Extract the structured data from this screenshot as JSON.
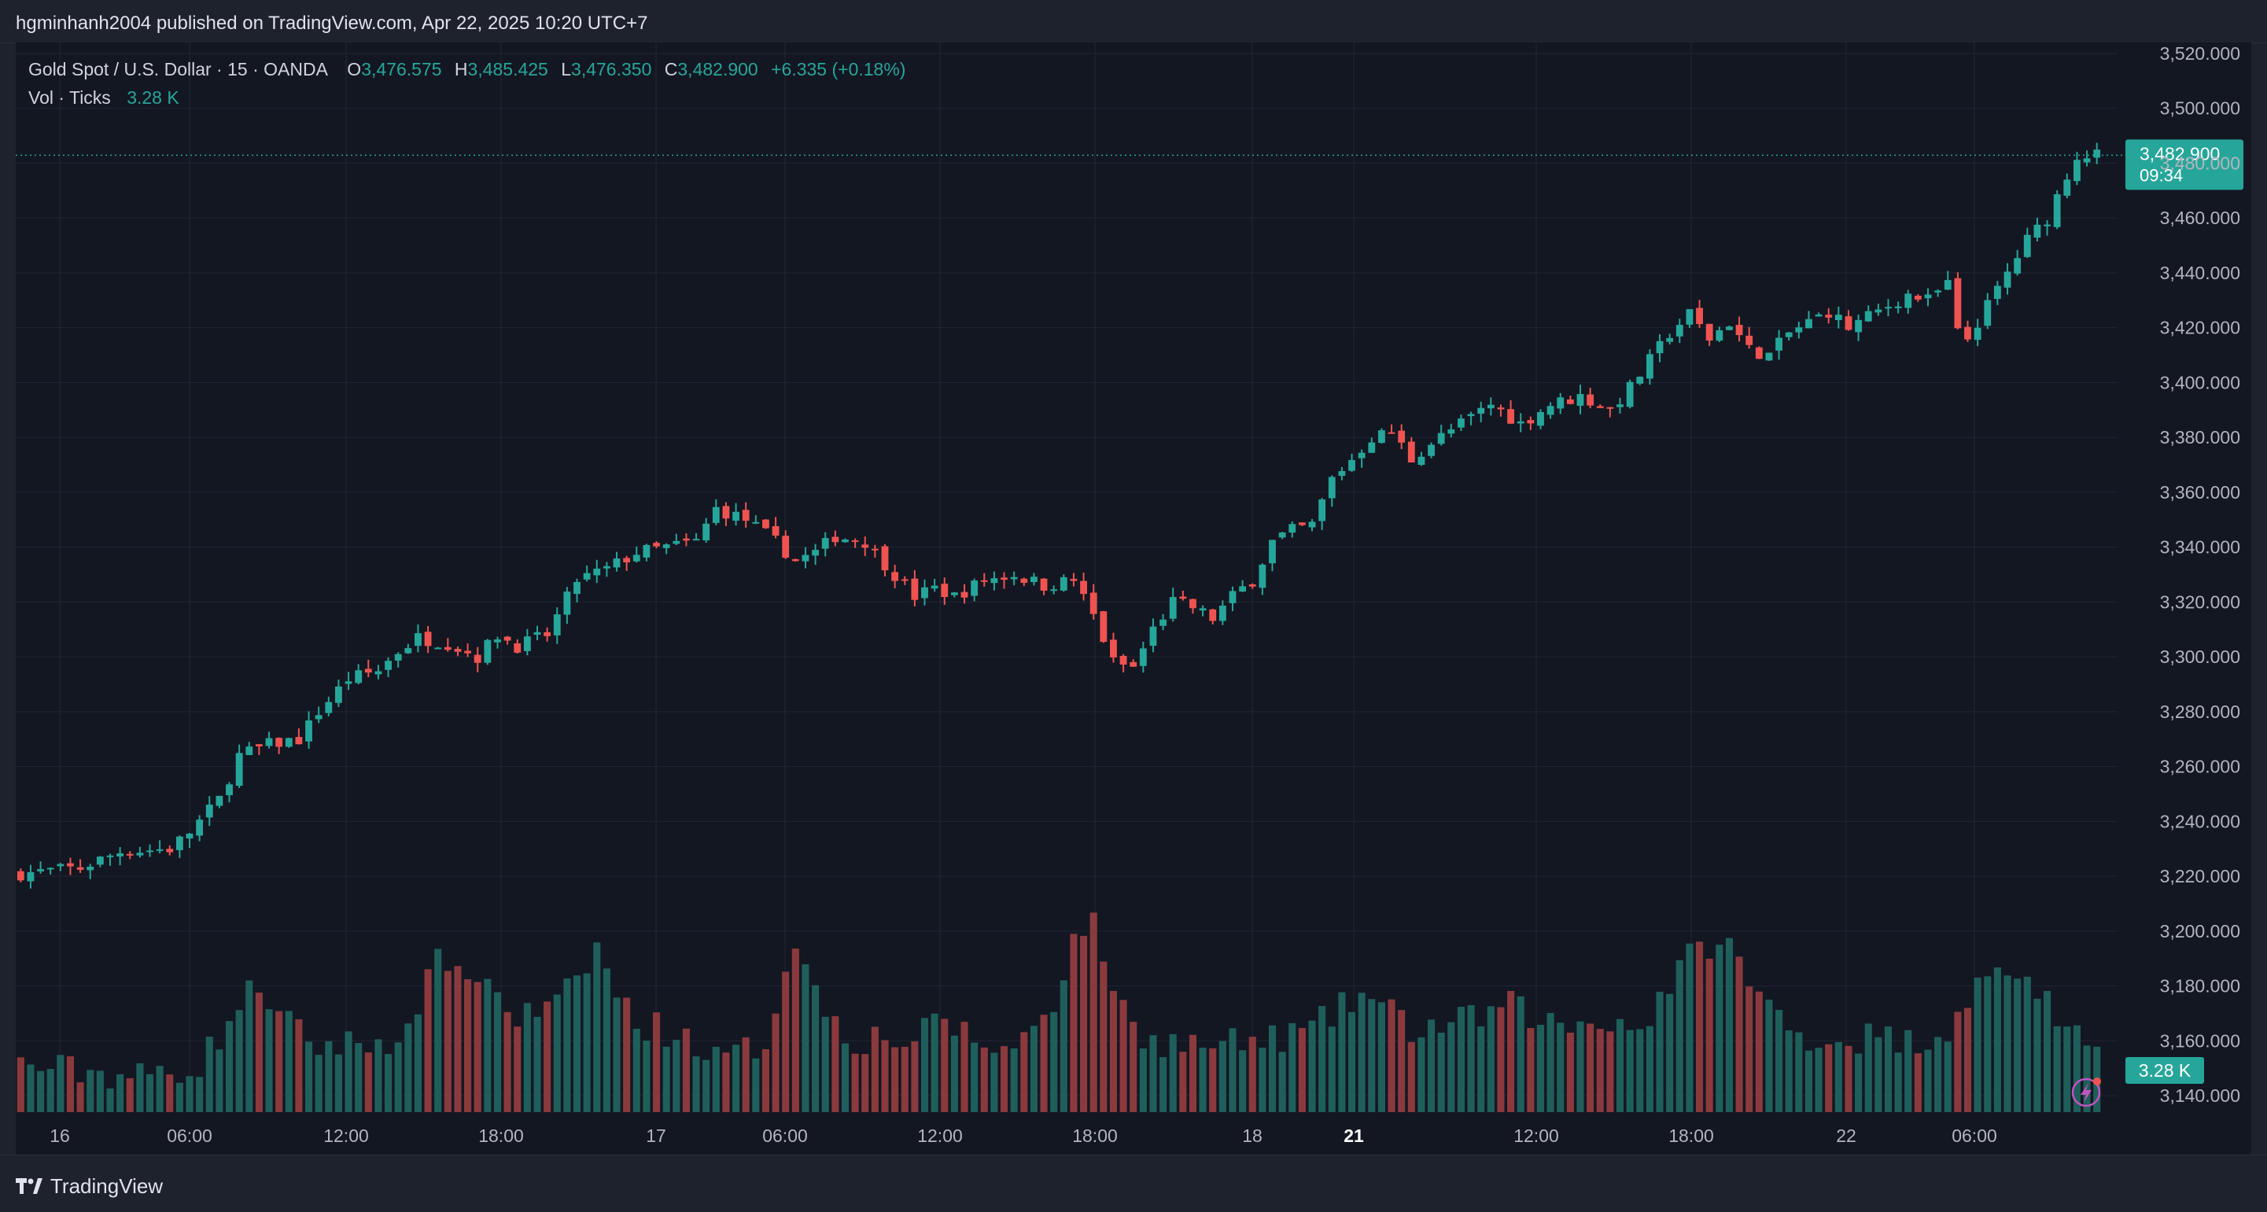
{
  "header": {
    "published": "hgminhanh2004 published on TradingView.com, Apr 22, 2025 10:20 UTC+7"
  },
  "legend": {
    "symbol": "Gold Spot / U.S. Dollar · 15 · OANDA",
    "o_label": "O",
    "o_value": "3,476.575",
    "h_label": "H",
    "h_value": "3,485.425",
    "l_label": "L",
    "l_value": "3,476.350",
    "c_label": "C",
    "c_value": "3,482.900",
    "change": "+6.335 (+0.18%)",
    "vol_label": "Vol · Ticks",
    "vol_value": "3.28 K"
  },
  "price_badge": {
    "price": "3,482.900",
    "countdown": "09:34"
  },
  "volume_badge": "3.28 K",
  "footer": {
    "brand": "TradingView"
  },
  "colors": {
    "up": "#26a69a",
    "down": "#ef5350",
    "vol_up": "#1f5f5b",
    "vol_down": "#8a3a3d",
    "background": "#131722",
    "grid": "#232733",
    "axis_text": "#b2b5be"
  },
  "chart_data": {
    "type": "candlestick",
    "instrument": "Gold Spot / U.S. Dollar",
    "interval": "15",
    "y_axis": {
      "ticks": [
        "3,520.000",
        "3,500.000",
        "3,480.000",
        "3,460.000",
        "3,440.000",
        "3,420.000",
        "3,400.000",
        "3,380.000",
        "3,360.000",
        "3,340.000",
        "3,320.000",
        "3,300.000",
        "3,280.000",
        "3,260.000",
        "3,240.000",
        "3,220.000",
        "3,200.000",
        "3,180.000",
        "3,160.000",
        "3,140.000"
      ],
      "tick_values": [
        3520,
        3500,
        3480,
        3460,
        3440,
        3420,
        3400,
        3380,
        3360,
        3340,
        3320,
        3300,
        3280,
        3260,
        3240,
        3220,
        3200,
        3180,
        3160,
        3140
      ],
      "range": [
        3134,
        3524
      ]
    },
    "x_axis": {
      "labels": [
        "16",
        "06:00",
        "12:00",
        "18:00",
        "17",
        "06:00",
        "12:00",
        "18:00",
        "18",
        "21",
        "12:00",
        "18:00",
        "22",
        "06:00"
      ],
      "bold": [
        false,
        false,
        false,
        false,
        false,
        false,
        false,
        false,
        false,
        true,
        false,
        false,
        false,
        false
      ]
    },
    "close_path": [
      [
        0,
        3221
      ],
      [
        6,
        3223
      ],
      [
        10,
        3229
      ],
      [
        15,
        3230
      ],
      [
        17,
        3236
      ],
      [
        20,
        3248
      ],
      [
        22,
        3264
      ],
      [
        25,
        3268
      ],
      [
        28,
        3270
      ],
      [
        30,
        3280
      ],
      [
        33,
        3292
      ],
      [
        36,
        3295
      ],
      [
        38,
        3302
      ],
      [
        40,
        3307
      ],
      [
        43,
        3305
      ],
      [
        46,
        3300
      ],
      [
        48,
        3308
      ],
      [
        50,
        3304
      ],
      [
        53,
        3308
      ],
      [
        56,
        3328
      ],
      [
        59,
        3332
      ],
      [
        62,
        3338
      ],
      [
        65,
        3340
      ],
      [
        68,
        3342
      ],
      [
        70,
        3354
      ],
      [
        73,
        3350
      ],
      [
        76,
        3342
      ],
      [
        78,
        3335
      ],
      [
        80,
        3338
      ],
      [
        82,
        3344
      ],
      [
        85,
        3342
      ],
      [
        88,
        3330
      ],
      [
        90,
        3322
      ],
      [
        92,
        3325
      ],
      [
        94,
        3322
      ],
      [
        97,
        3328
      ],
      [
        100,
        3330
      ],
      [
        103,
        3326
      ],
      [
        106,
        3328
      ],
      [
        108,
        3315
      ],
      [
        110,
        3298
      ],
      [
        112,
        3296
      ],
      [
        114,
        3310
      ],
      [
        116,
        3320
      ],
      [
        118,
        3318
      ],
      [
        120,
        3314
      ],
      [
        122,
        3322
      ],
      [
        124,
        3328
      ],
      [
        126,
        3342
      ],
      [
        128,
        3346
      ],
      [
        130,
        3348
      ],
      [
        132,
        3365
      ],
      [
        134,
        3372
      ],
      [
        136,
        3380
      ],
      [
        138,
        3382
      ],
      [
        140,
        3372
      ],
      [
        142,
        3378
      ],
      [
        145,
        3385
      ],
      [
        148,
        3392
      ],
      [
        151,
        3385
      ],
      [
        154,
        3392
      ],
      [
        157,
        3395
      ],
      [
        160,
        3390
      ],
      [
        162,
        3398
      ],
      [
        164,
        3408
      ],
      [
        166,
        3418
      ],
      [
        168,
        3425
      ],
      [
        170,
        3416
      ],
      [
        172,
        3422
      ],
      [
        174,
        3412
      ],
      [
        176,
        3410
      ],
      [
        178,
        3418
      ],
      [
        180,
        3422
      ],
      [
        182,
        3426
      ],
      [
        184,
        3420
      ],
      [
        186,
        3424
      ],
      [
        188,
        3428
      ],
      [
        190,
        3432
      ],
      [
        192,
        3430
      ],
      [
        194,
        3436
      ],
      [
        195,
        3418
      ],
      [
        196,
        3416
      ],
      [
        198,
        3428
      ],
      [
        200,
        3440
      ],
      [
        202,
        3452
      ],
      [
        204,
        3460
      ],
      [
        206,
        3476
      ],
      [
        207,
        3482.9
      ]
    ],
    "current_price": 3482.9,
    "last_volume": "3.28 K",
    "volume_scale": {
      "min": 0,
      "max": 100
    },
    "volume_path": [
      [
        0,
        20
      ],
      [
        12,
        15
      ],
      [
        18,
        20
      ],
      [
        22,
        45
      ],
      [
        24,
        55
      ],
      [
        26,
        40
      ],
      [
        30,
        28
      ],
      [
        36,
        30
      ],
      [
        40,
        35
      ],
      [
        42,
        75
      ],
      [
        44,
        55
      ],
      [
        46,
        60
      ],
      [
        50,
        40
      ],
      [
        54,
        45
      ],
      [
        56,
        55
      ],
      [
        58,
        70
      ],
      [
        60,
        50
      ],
      [
        62,
        38
      ],
      [
        64,
        36
      ],
      [
        68,
        30
      ],
      [
        70,
        22
      ],
      [
        72,
        24
      ],
      [
        75,
        30
      ],
      [
        77,
        62
      ],
      [
        78,
        75
      ],
      [
        80,
        50
      ],
      [
        84,
        30
      ],
      [
        86,
        32
      ],
      [
        90,
        30
      ],
      [
        93,
        40
      ],
      [
        96,
        30
      ],
      [
        100,
        26
      ],
      [
        102,
        38
      ],
      [
        104,
        48
      ],
      [
        106,
        72
      ],
      [
        107,
        80
      ],
      [
        108,
        78
      ],
      [
        110,
        55
      ],
      [
        112,
        35
      ],
      [
        115,
        30
      ],
      [
        120,
        28
      ],
      [
        125,
        30
      ],
      [
        130,
        35
      ],
      [
        135,
        50
      ],
      [
        138,
        42
      ],
      [
        140,
        35
      ],
      [
        145,
        38
      ],
      [
        150,
        45
      ],
      [
        155,
        36
      ],
      [
        160,
        40
      ],
      [
        163,
        35
      ],
      [
        166,
        55
      ],
      [
        168,
        65
      ],
      [
        170,
        72
      ],
      [
        172,
        70
      ],
      [
        174,
        55
      ],
      [
        178,
        35
      ],
      [
        182,
        30
      ],
      [
        186,
        32
      ],
      [
        190,
        30
      ],
      [
        194,
        35
      ],
      [
        196,
        50
      ],
      [
        198,
        55
      ],
      [
        200,
        62
      ],
      [
        202,
        55
      ],
      [
        204,
        50
      ],
      [
        205,
        30
      ]
    ]
  }
}
